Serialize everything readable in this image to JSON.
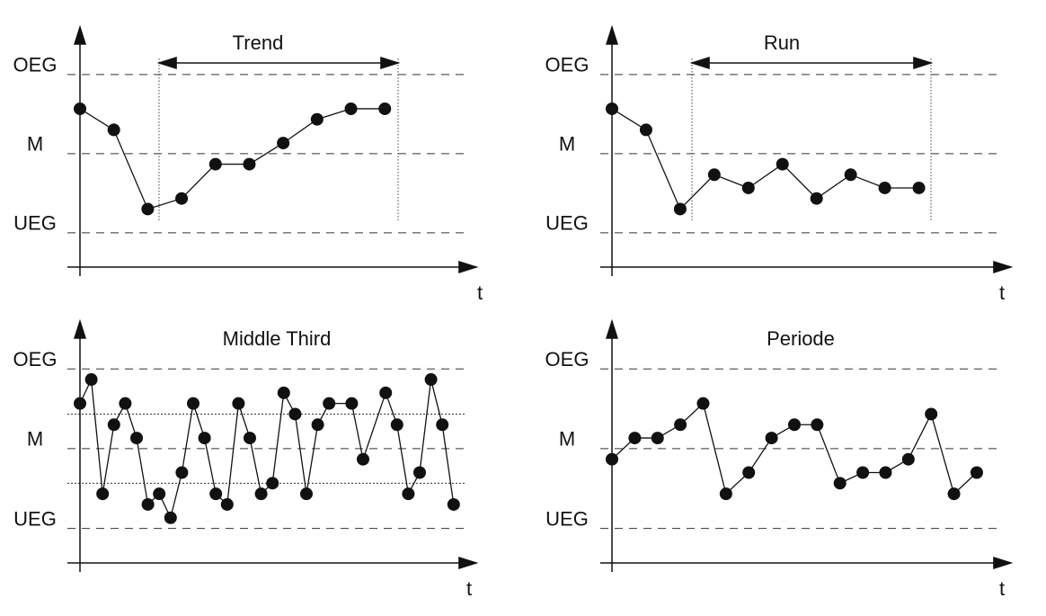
{
  "chart_data": [
    {
      "type": "line",
      "title": "Trend",
      "xlabel": "t",
      "color": "#111",
      "grid": "dashed",
      "x": [
        0,
        1,
        2,
        3,
        4,
        5,
        6,
        7,
        8,
        9
      ],
      "values": [
        1.7,
        0.9,
        -2.1,
        -1.7,
        -0.4,
        -0.4,
        0.4,
        1.3,
        1.7,
        1.7
      ],
      "xlim": [
        0,
        11.7
      ],
      "ylim": [
        -4.3,
        4.8
      ],
      "yticks": [
        {
          "value": 3,
          "label": "OEG"
        },
        {
          "value": 0,
          "label": "M"
        },
        {
          "value": -3,
          "label": "UEG"
        }
      ]
    },
    {
      "type": "line",
      "title": "Run",
      "xlabel": "t",
      "color": "#111",
      "grid": "dashed",
      "x": [
        0,
        1,
        2,
        3,
        4,
        5,
        6,
        7,
        8,
        9
      ],
      "values": [
        1.7,
        0.9,
        -2.1,
        -0.8,
        -1.3,
        -0.4,
        -1.7,
        -0.8,
        -1.3,
        -1.3
      ],
      "xlim": [
        0,
        11.7
      ],
      "ylim": [
        -4.3,
        4.8
      ],
      "yticks": [
        {
          "value": 3,
          "label": "OEG"
        },
        {
          "value": 0,
          "label": "M"
        },
        {
          "value": -3,
          "label": "UEG"
        }
      ]
    },
    {
      "type": "line",
      "title": "Middle Third",
      "xlabel": "t",
      "color": "#111",
      "grid": "dashed",
      "guides": [
        1.3,
        -1.3
      ],
      "x": [
        0,
        1,
        2,
        3,
        4,
        5,
        6,
        7,
        8,
        9,
        10,
        11,
        12,
        13,
        14,
        15,
        16,
        17,
        18,
        19,
        20,
        21,
        22,
        24,
        25,
        27,
        28,
        29,
        30,
        31,
        32,
        33
      ],
      "values": [
        1.7,
        2.6,
        -1.7,
        0.9,
        1.7,
        0.4,
        -2.1,
        -1.7,
        -2.6,
        -0.9,
        1.7,
        0.4,
        -1.7,
        -2.1,
        1.7,
        0.4,
        -1.7,
        -1.3,
        2.1,
        1.3,
        -1.7,
        0.9,
        1.7,
        1.7,
        -0.4,
        2.1,
        0.9,
        -1.7,
        -0.9,
        2.6,
        0.9,
        -2.1
      ],
      "xlim": [
        0,
        35
      ],
      "ylim": [
        -4.3,
        4.8
      ],
      "yticks": [
        {
          "value": 3,
          "label": "OEG"
        },
        {
          "value": 0,
          "label": "M"
        },
        {
          "value": -3,
          "label": "UEG"
        }
      ]
    },
    {
      "type": "line",
      "title": "Periode",
      "xlabel": "t",
      "color": "#111",
      "grid": "dashed",
      "x": [
        0,
        1,
        2,
        3,
        4,
        5,
        6,
        7,
        8,
        9,
        10,
        11,
        12,
        13,
        14,
        15,
        16
      ],
      "values": [
        -0.4,
        0.4,
        0.4,
        0.9,
        1.7,
        -1.7,
        -0.9,
        0.4,
        0.9,
        0.9,
        -1.3,
        -0.9,
        -0.9,
        -0.4,
        1.3,
        -1.7,
        -0.9
      ],
      "xlim": [
        0,
        17.5
      ],
      "ylim": [
        -4.3,
        4.8
      ],
      "yticks": [
        {
          "value": 3,
          "label": "OEG"
        },
        {
          "value": 0,
          "label": "M"
        },
        {
          "value": -3,
          "label": "UEG"
        }
      ]
    }
  ]
}
